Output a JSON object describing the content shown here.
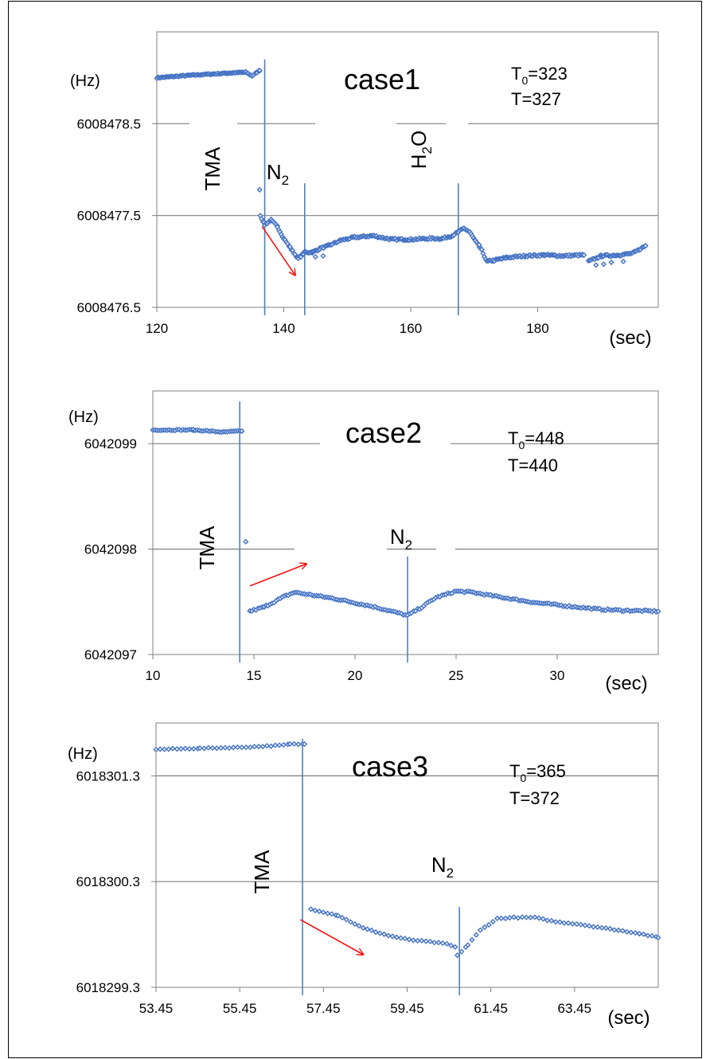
{
  "colors": {
    "marker": "#4472C4",
    "event_line": "#4F81BD",
    "grid": "#808080",
    "arrow": "#FF0000",
    "frame": "#000000"
  },
  "chart_data": [
    {
      "type": "scatter",
      "title": "case1",
      "temps": {
        "t0_label": "T",
        "t0_sub": "0",
        "t0_value": "=323",
        "t": "T=327"
      },
      "xlabel": "(sec)",
      "ylabel": "(Hz)",
      "xlim": [
        120,
        199
      ],
      "ylim": [
        6008476.5,
        6008479.5
      ],
      "xticks": [
        120,
        140,
        160,
        180
      ],
      "yticks": [
        6008476.5,
        6008477.5,
        6008478.5
      ],
      "xtick_labels": [
        "120",
        "140",
        "160",
        "180"
      ],
      "ytick_labels": [
        "6008476.5",
        "6008477.5",
        "6008478.5"
      ],
      "grid": true,
      "events": [
        {
          "label": "TMA",
          "sub": "",
          "x": 137,
          "y_from": 6008479.2,
          "y_to": 6008476.5
        },
        {
          "label": "N",
          "sub": "2",
          "x": 143.3,
          "y_from": 6008477.85,
          "y_to": 6008476.5
        },
        {
          "label": "H",
          "sub": "2",
          "suffix": "O",
          "x": 167.5,
          "y_from": 6008477.85,
          "y_to": 6008476.5
        }
      ],
      "arrows": [
        {
          "from": [
            136.6,
            6008477.38
          ],
          "to": [
            141.8,
            6008476.85
          ]
        }
      ],
      "segments": [
        {
          "points": [
            [
              120,
              6008479.0
            ],
            [
              126,
              6008479.03
            ],
            [
              131,
              6008479.05
            ],
            [
              134,
              6008479.06
            ],
            [
              135,
              6008479.02
            ],
            [
              136.2,
              6008479.08
            ]
          ],
          "noise": 0.006,
          "step": 0.2
        },
        {
          "points": [
            [
              136.2,
              6008477.78
            ]
          ],
          "noise": 0,
          "step": 1
        },
        {
          "points": [
            [
              136.3,
              6008477.5
            ],
            [
              137,
              6008477.4
            ],
            [
              138,
              6008477.45
            ],
            [
              139,
              6008477.38
            ],
            [
              140,
              6008477.25
            ],
            [
              141.2,
              6008477.13
            ],
            [
              142.3,
              6008477.03
            ],
            [
              143.3,
              6008477.1
            ],
            [
              144.5,
              6008477.1
            ],
            [
              145.7,
              6008477.14
            ],
            [
              147,
              6008477.17
            ],
            [
              149,
              6008477.23
            ],
            [
              151,
              6008477.26
            ],
            [
              154,
              6008477.28
            ],
            [
              157,
              6008477.24
            ],
            [
              160,
              6008477.24
            ],
            [
              163,
              6008477.25
            ],
            [
              165,
              6008477.25
            ],
            [
              166.5,
              6008477.28
            ],
            [
              167.5,
              6008477.32
            ],
            [
              168.4,
              6008477.36
            ],
            [
              169.3,
              6008477.32
            ],
            [
              170.2,
              6008477.22
            ],
            [
              171.2,
              6008477.12
            ],
            [
              172,
              6008477.0
            ],
            [
              173,
              6008477.01
            ],
            [
              175,
              6008477.04
            ],
            [
              178,
              6008477.06
            ],
            [
              181,
              6008477.07
            ],
            [
              184,
              6008477.06
            ],
            [
              187.3,
              6008477.07
            ]
          ],
          "noise": 0.01,
          "step": 0.2
        },
        {
          "points": [
            [
              188,
              6008477.0
            ],
            [
              190,
              6008477.06
            ],
            [
              193,
              6008477.07
            ],
            [
              195,
              6008477.09
            ],
            [
              197,
              6008477.17
            ]
          ],
          "noise": 0.01,
          "step": 0.2
        },
        {
          "points": [
            [
              145,
              6008477.05
            ],
            [
              146.2,
              6008477.06
            ],
            [
              170.8,
              6008477.18
            ],
            [
              189.2,
              6008476.96
            ],
            [
              190.4,
              6008476.97
            ],
            [
              191.6,
              6008476.99
            ],
            [
              193.5,
              6008477.0
            ]
          ],
          "noise": 0,
          "step": 1
        }
      ]
    },
    {
      "type": "scatter",
      "title": "case2",
      "temps": {
        "t0_label": "T",
        "t0_sub": "0",
        "t0_value": "=448",
        "t": "T=440"
      },
      "xlabel": "(sec)",
      "ylabel": "(Hz)",
      "xlim": [
        10,
        35
      ],
      "ylim": [
        6042097,
        6042099.5
      ],
      "xticks": [
        10,
        15,
        20,
        25,
        30
      ],
      "yticks": [
        6042097,
        6042098,
        6042099
      ],
      "xtick_labels": [
        "10",
        "15",
        "20",
        "25",
        "30"
      ],
      "ytick_labels": [
        "6042097",
        "6042098",
        "6042099"
      ],
      "grid": true,
      "events": [
        {
          "label": "TMA",
          "sub": "",
          "x": 14.3,
          "y_from": 6042099.4,
          "y_to": 6042097
        },
        {
          "label": "N",
          "sub": "2",
          "x": 22.6,
          "y_from": 6042097.93,
          "y_to": 6042097
        }
      ],
      "arrows": [
        {
          "from": [
            14.8,
            6042097.65
          ],
          "to": [
            17.6,
            6042097.86
          ]
        }
      ],
      "segments": [
        {
          "points": [
            [
              10,
              6042099.13
            ],
            [
              12,
              6042099.13
            ],
            [
              13.5,
              6042099.11
            ],
            [
              14.4,
              6042099.12
            ]
          ],
          "noise": 0.005,
          "step": 0.1
        },
        {
          "points": [
            [
              14.6,
              6042098.07
            ]
          ],
          "noise": 0,
          "step": 1
        },
        {
          "points": [
            [
              14.8,
              6042097.41
            ],
            [
              15.5,
              6042097.45
            ],
            [
              16.5,
              6042097.55
            ],
            [
              17,
              6042097.59
            ],
            [
              18,
              6042097.56
            ],
            [
              19,
              6042097.53
            ],
            [
              20,
              6042097.49
            ],
            [
              21,
              6042097.45
            ],
            [
              22,
              6042097.4
            ],
            [
              22.6,
              6042097.37
            ],
            [
              23.3,
              6042097.45
            ],
            [
              24,
              6042097.54
            ],
            [
              25,
              6042097.6
            ],
            [
              25.8,
              6042097.59
            ],
            [
              27,
              6042097.55
            ],
            [
              28,
              6042097.52
            ],
            [
              29,
              6042097.49
            ],
            [
              30,
              6042097.47
            ],
            [
              31,
              6042097.45
            ],
            [
              32,
              6042097.43
            ],
            [
              33,
              6042097.42
            ],
            [
              35,
              6042097.41
            ]
          ],
          "noise": 0.008,
          "step": 0.1
        }
      ]
    },
    {
      "type": "scatter",
      "title": "case3",
      "temps": {
        "t0_label": "T",
        "t0_sub": "0",
        "t0_value": "=365",
        "t": "T=372"
      },
      "xlabel": "(sec)",
      "ylabel": "(Hz)",
      "xlim": [
        53.45,
        65.45
      ],
      "ylim": [
        6018299.3,
        6018301.8
      ],
      "xticks": [
        53.45,
        55.45,
        57.45,
        59.45,
        61.45,
        63.45
      ],
      "yticks": [
        6018299.3,
        6018300.3,
        6018301.3
      ],
      "xtick_labels": [
        "53.45",
        "55.45",
        "57.45",
        "59.45",
        "61.45",
        "63.45"
      ],
      "ytick_labels": [
        "6018299.3",
        "6018300.3",
        "6018301.3"
      ],
      "grid": true,
      "events": [
        {
          "label": "TMA",
          "sub": "",
          "x": 56.95,
          "y_from": 6018301.65,
          "y_to": 6018299.3
        },
        {
          "label": "N",
          "sub": "2",
          "x": 60.7,
          "y_from": 6018300.06,
          "y_to": 6018299.3
        }
      ],
      "arrows": [
        {
          "from": [
            56.9,
            6018299.94
          ],
          "to": [
            58.4,
            6018299.61
          ]
        }
      ],
      "segments": [
        {
          "points": [
            [
              53.45,
              6018301.55
            ],
            [
              54.5,
              6018301.56
            ],
            [
              55.5,
              6018301.57
            ],
            [
              56.5,
              6018301.59
            ],
            [
              56.65,
              6018301.6
            ],
            [
              57.0,
              6018301.6
            ]
          ],
          "noise": 0.004,
          "step": 0.1
        },
        {
          "points": [
            [
              57.15,
              6018300.04
            ],
            [
              57.8,
              6018299.98
            ],
            [
              58.4,
              6018299.86
            ],
            [
              59,
              6018299.79
            ],
            [
              59.5,
              6018299.75
            ],
            [
              60,
              6018299.73
            ],
            [
              60.4,
              6018299.71
            ],
            [
              60.6,
              6018299.68
            ],
            [
              60.65,
              6018299.6
            ],
            [
              60.9,
              6018299.7
            ],
            [
              61.2,
              6018299.84
            ],
            [
              61.6,
              6018299.95
            ],
            [
              62,
              6018299.96
            ],
            [
              62.5,
              6018299.96
            ],
            [
              63,
              6018299.92
            ],
            [
              63.5,
              6018299.9
            ],
            [
              64,
              6018299.87
            ],
            [
              64.5,
              6018299.84
            ],
            [
              65,
              6018299.81
            ],
            [
              65.45,
              6018299.77
            ]
          ],
          "noise": 0.004,
          "step": 0.1
        }
      ]
    }
  ]
}
